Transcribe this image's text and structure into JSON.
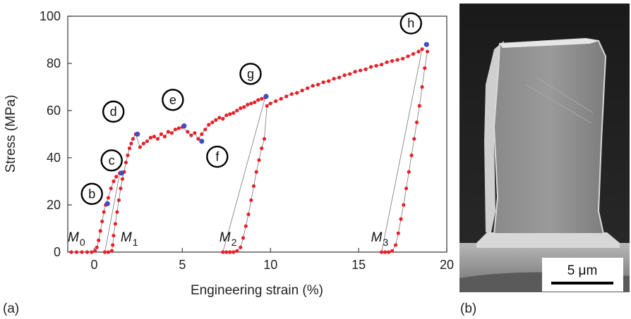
{
  "chart_data": {
    "type": "scatter",
    "xlabel": "Engineering strain (%)",
    "ylabel": "Stress (MPa)",
    "xlim": [
      -1.5,
      20
    ],
    "ylim": [
      0,
      100
    ],
    "x_ticks": [
      "0",
      "5",
      "10",
      "15",
      "20"
    ],
    "y_ticks": [
      "0",
      "20",
      "40",
      "60",
      "80",
      "100"
    ],
    "grid": false,
    "series": [
      {
        "color": "#e8202a",
        "values": [
          [
            -1.3,
            0
          ],
          [
            -1.0,
            0
          ],
          [
            -0.7,
            0
          ],
          [
            -0.4,
            0
          ],
          [
            -0.15,
            0
          ],
          [
            0.05,
            0.5
          ],
          [
            0.15,
            2
          ],
          [
            0.25,
            5
          ],
          [
            0.35,
            9
          ],
          [
            0.45,
            13
          ],
          [
            0.55,
            17
          ],
          [
            0.65,
            20
          ],
          [
            0.8,
            23
          ],
          [
            0.95,
            27
          ],
          [
            1.1,
            30
          ],
          [
            1.25,
            32
          ],
          [
            1.45,
            33.5
          ],
          [
            0.6,
            0
          ],
          [
            0.8,
            0
          ],
          [
            1.0,
            0.5
          ],
          [
            1.05,
            3
          ],
          [
            1.1,
            7
          ],
          [
            1.2,
            12
          ],
          [
            1.3,
            17
          ],
          [
            1.4,
            22
          ],
          [
            1.5,
            27
          ],
          [
            1.6,
            31
          ],
          [
            1.7,
            34
          ],
          [
            1.8,
            38
          ],
          [
            1.9,
            41
          ],
          [
            2.0,
            44
          ],
          [
            2.1,
            46
          ],
          [
            2.2,
            48
          ],
          [
            2.35,
            50
          ],
          [
            2.6,
            44.5
          ],
          [
            2.8,
            46
          ],
          [
            3.0,
            47
          ],
          [
            3.2,
            48.5
          ],
          [
            3.4,
            49
          ],
          [
            3.6,
            48
          ],
          [
            3.8,
            50
          ],
          [
            4.0,
            49
          ],
          [
            4.2,
            51
          ],
          [
            4.4,
            50.5
          ],
          [
            4.6,
            52
          ],
          [
            4.8,
            52.5
          ],
          [
            5.0,
            53
          ],
          [
            5.3,
            51
          ],
          [
            5.5,
            49.5
          ],
          [
            5.7,
            50.5
          ],
          [
            5.9,
            48
          ],
          [
            6.1,
            50
          ],
          [
            6.3,
            52
          ],
          [
            6.5,
            54
          ],
          [
            6.7,
            55
          ],
          [
            6.9,
            56
          ],
          [
            7.1,
            57
          ],
          [
            7.3,
            56.5
          ],
          [
            7.5,
            58
          ],
          [
            7.7,
            58.5
          ],
          [
            7.9,
            59
          ],
          [
            8.1,
            60
          ],
          [
            8.3,
            61
          ],
          [
            8.5,
            61.5
          ],
          [
            8.7,
            62.5
          ],
          [
            8.9,
            63
          ],
          [
            9.1,
            63.5
          ],
          [
            9.3,
            64.5
          ],
          [
            9.5,
            65
          ],
          [
            9.7,
            65.5
          ],
          [
            7.3,
            0
          ],
          [
            7.5,
            0
          ],
          [
            7.7,
            0
          ],
          [
            7.9,
            0
          ],
          [
            8.1,
            0.5
          ],
          [
            8.3,
            2
          ],
          [
            8.45,
            6
          ],
          [
            8.6,
            11
          ],
          [
            8.75,
            16
          ],
          [
            8.9,
            22
          ],
          [
            9.05,
            28
          ],
          [
            9.2,
            34
          ],
          [
            9.35,
            39
          ],
          [
            9.5,
            44
          ],
          [
            9.65,
            48
          ],
          [
            9.8,
            62
          ],
          [
            10.0,
            63
          ],
          [
            10.3,
            64
          ],
          [
            10.6,
            65
          ],
          [
            10.9,
            66
          ],
          [
            11.2,
            67
          ],
          [
            11.5,
            67.5
          ],
          [
            11.8,
            68.5
          ],
          [
            12.1,
            69.5
          ],
          [
            12.4,
            70.5
          ],
          [
            12.7,
            71
          ],
          [
            13.0,
            72
          ],
          [
            13.3,
            72.5
          ],
          [
            13.6,
            73.5
          ],
          [
            13.9,
            74
          ],
          [
            14.2,
            75
          ],
          [
            14.5,
            75.5
          ],
          [
            14.8,
            76.5
          ],
          [
            15.1,
            77
          ],
          [
            15.4,
            77.5
          ],
          [
            15.7,
            78.5
          ],
          [
            16.0,
            79
          ],
          [
            16.3,
            79.5
          ],
          [
            16.6,
            80.5
          ],
          [
            16.9,
            81
          ],
          [
            17.2,
            81.5
          ],
          [
            17.5,
            82
          ],
          [
            17.8,
            83
          ],
          [
            18.1,
            84
          ],
          [
            18.4,
            85
          ],
          [
            18.6,
            86
          ],
          [
            16.3,
            0
          ],
          [
            16.5,
            0
          ],
          [
            16.7,
            0
          ],
          [
            16.9,
            0.5
          ],
          [
            17.1,
            3
          ],
          [
            17.25,
            8
          ],
          [
            17.4,
            14
          ],
          [
            17.55,
            20
          ],
          [
            17.7,
            27
          ],
          [
            17.85,
            34
          ],
          [
            18.0,
            41
          ],
          [
            18.15,
            48
          ],
          [
            18.3,
            55
          ],
          [
            18.45,
            62
          ],
          [
            18.6,
            70
          ],
          [
            18.75,
            78
          ],
          [
            18.9,
            85
          ]
        ]
      }
    ],
    "highlight_points": [
      {
        "label": "b",
        "x": 0.75,
        "y": 20.5
      },
      {
        "label": "c",
        "x": 1.55,
        "y": 33.5
      },
      {
        "label": "d",
        "x": 2.45,
        "y": 50
      },
      {
        "label": "e",
        "x": 5.1,
        "y": 53.5
      },
      {
        "label": "f",
        "x": 6.1,
        "y": 47
      },
      {
        "label": "g",
        "x": 9.75,
        "y": 66
      },
      {
        "label": "h",
        "x": 18.85,
        "y": 88
      }
    ],
    "highlight_color": "#3b4fc0",
    "segment_labels": [
      {
        "main": "M",
        "sub": "0"
      },
      {
        "main": "M",
        "sub": "1"
      },
      {
        "main": "M",
        "sub": "2"
      },
      {
        "main": "M",
        "sub": "3"
      }
    ]
  },
  "panels": {
    "a_label": "(a)",
    "b_label": "(b)"
  },
  "micrograph": {
    "scale_bar_label": "5 μm"
  }
}
